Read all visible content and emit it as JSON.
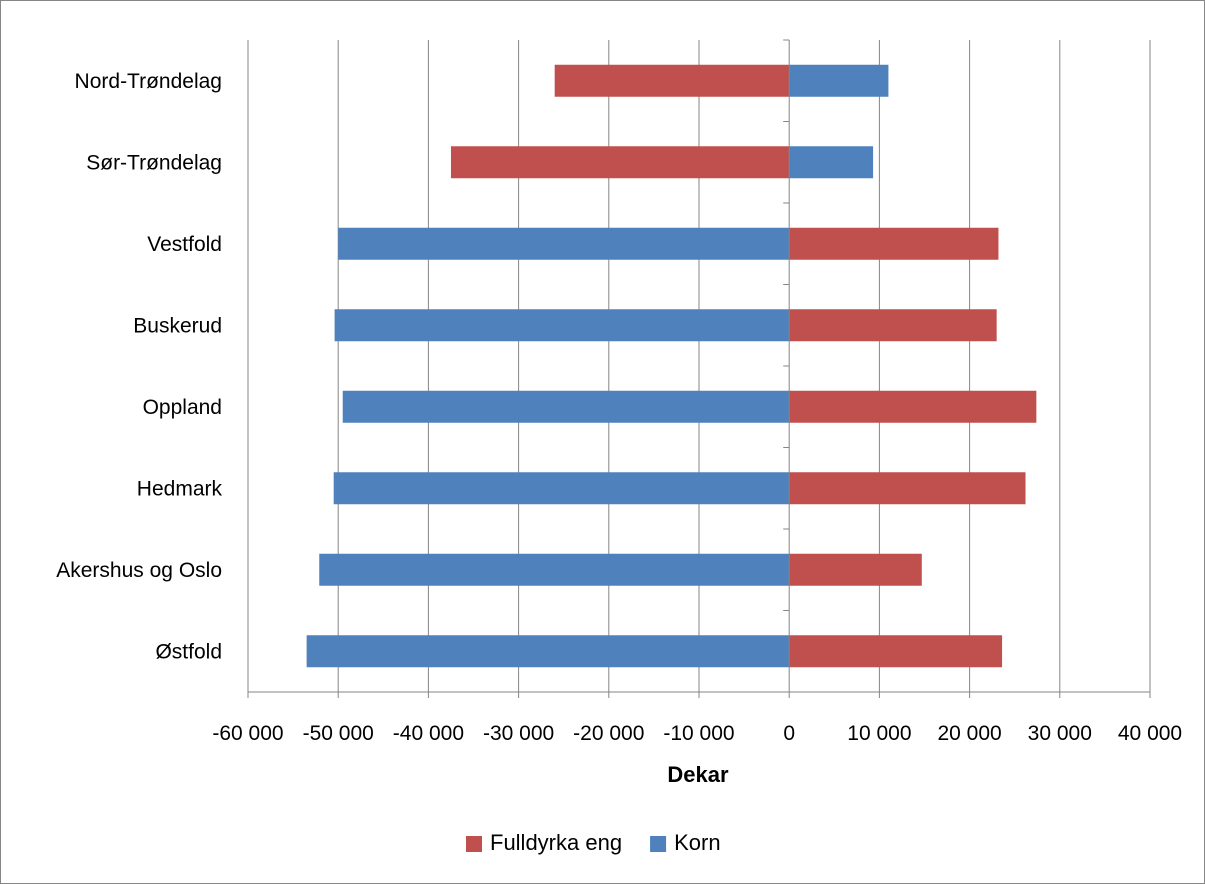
{
  "chart_data": {
    "type": "bar",
    "orientation": "horizontal",
    "stacked": true,
    "title": "",
    "xlabel": "Dekar",
    "ylabel": "",
    "xlim": [
      -60000,
      40000
    ],
    "x_ticks": [
      -60000,
      -50000,
      -40000,
      -30000,
      -20000,
      -10000,
      0,
      10000,
      20000,
      30000,
      40000
    ],
    "x_tick_labels": [
      "-60 000",
      "-50 000",
      "-40 000",
      "-30 000",
      "-20 000",
      "-10 000",
      "0",
      "10 000",
      "20 000",
      "30 000",
      "40 000"
    ],
    "grid": "vertical",
    "legend_position": "bottom",
    "categories": [
      "Nord-Trøndelag",
      "Sør-Trøndelag",
      "Vestfold",
      "Buskerud",
      "Oppland",
      "Hedmark",
      "Akershus og Oslo",
      "Østfold"
    ],
    "series": [
      {
        "name": "Fulldyrka eng",
        "color": "#C0504D",
        "values": [
          -26000,
          -37500,
          23200,
          23000,
          27400,
          26200,
          14700,
          23600
        ]
      },
      {
        "name": "Korn",
        "color": "#4F81BD",
        "values": [
          11000,
          9300,
          -50000,
          -50400,
          -49500,
          -50500,
          -52100,
          -53500
        ]
      }
    ]
  }
}
